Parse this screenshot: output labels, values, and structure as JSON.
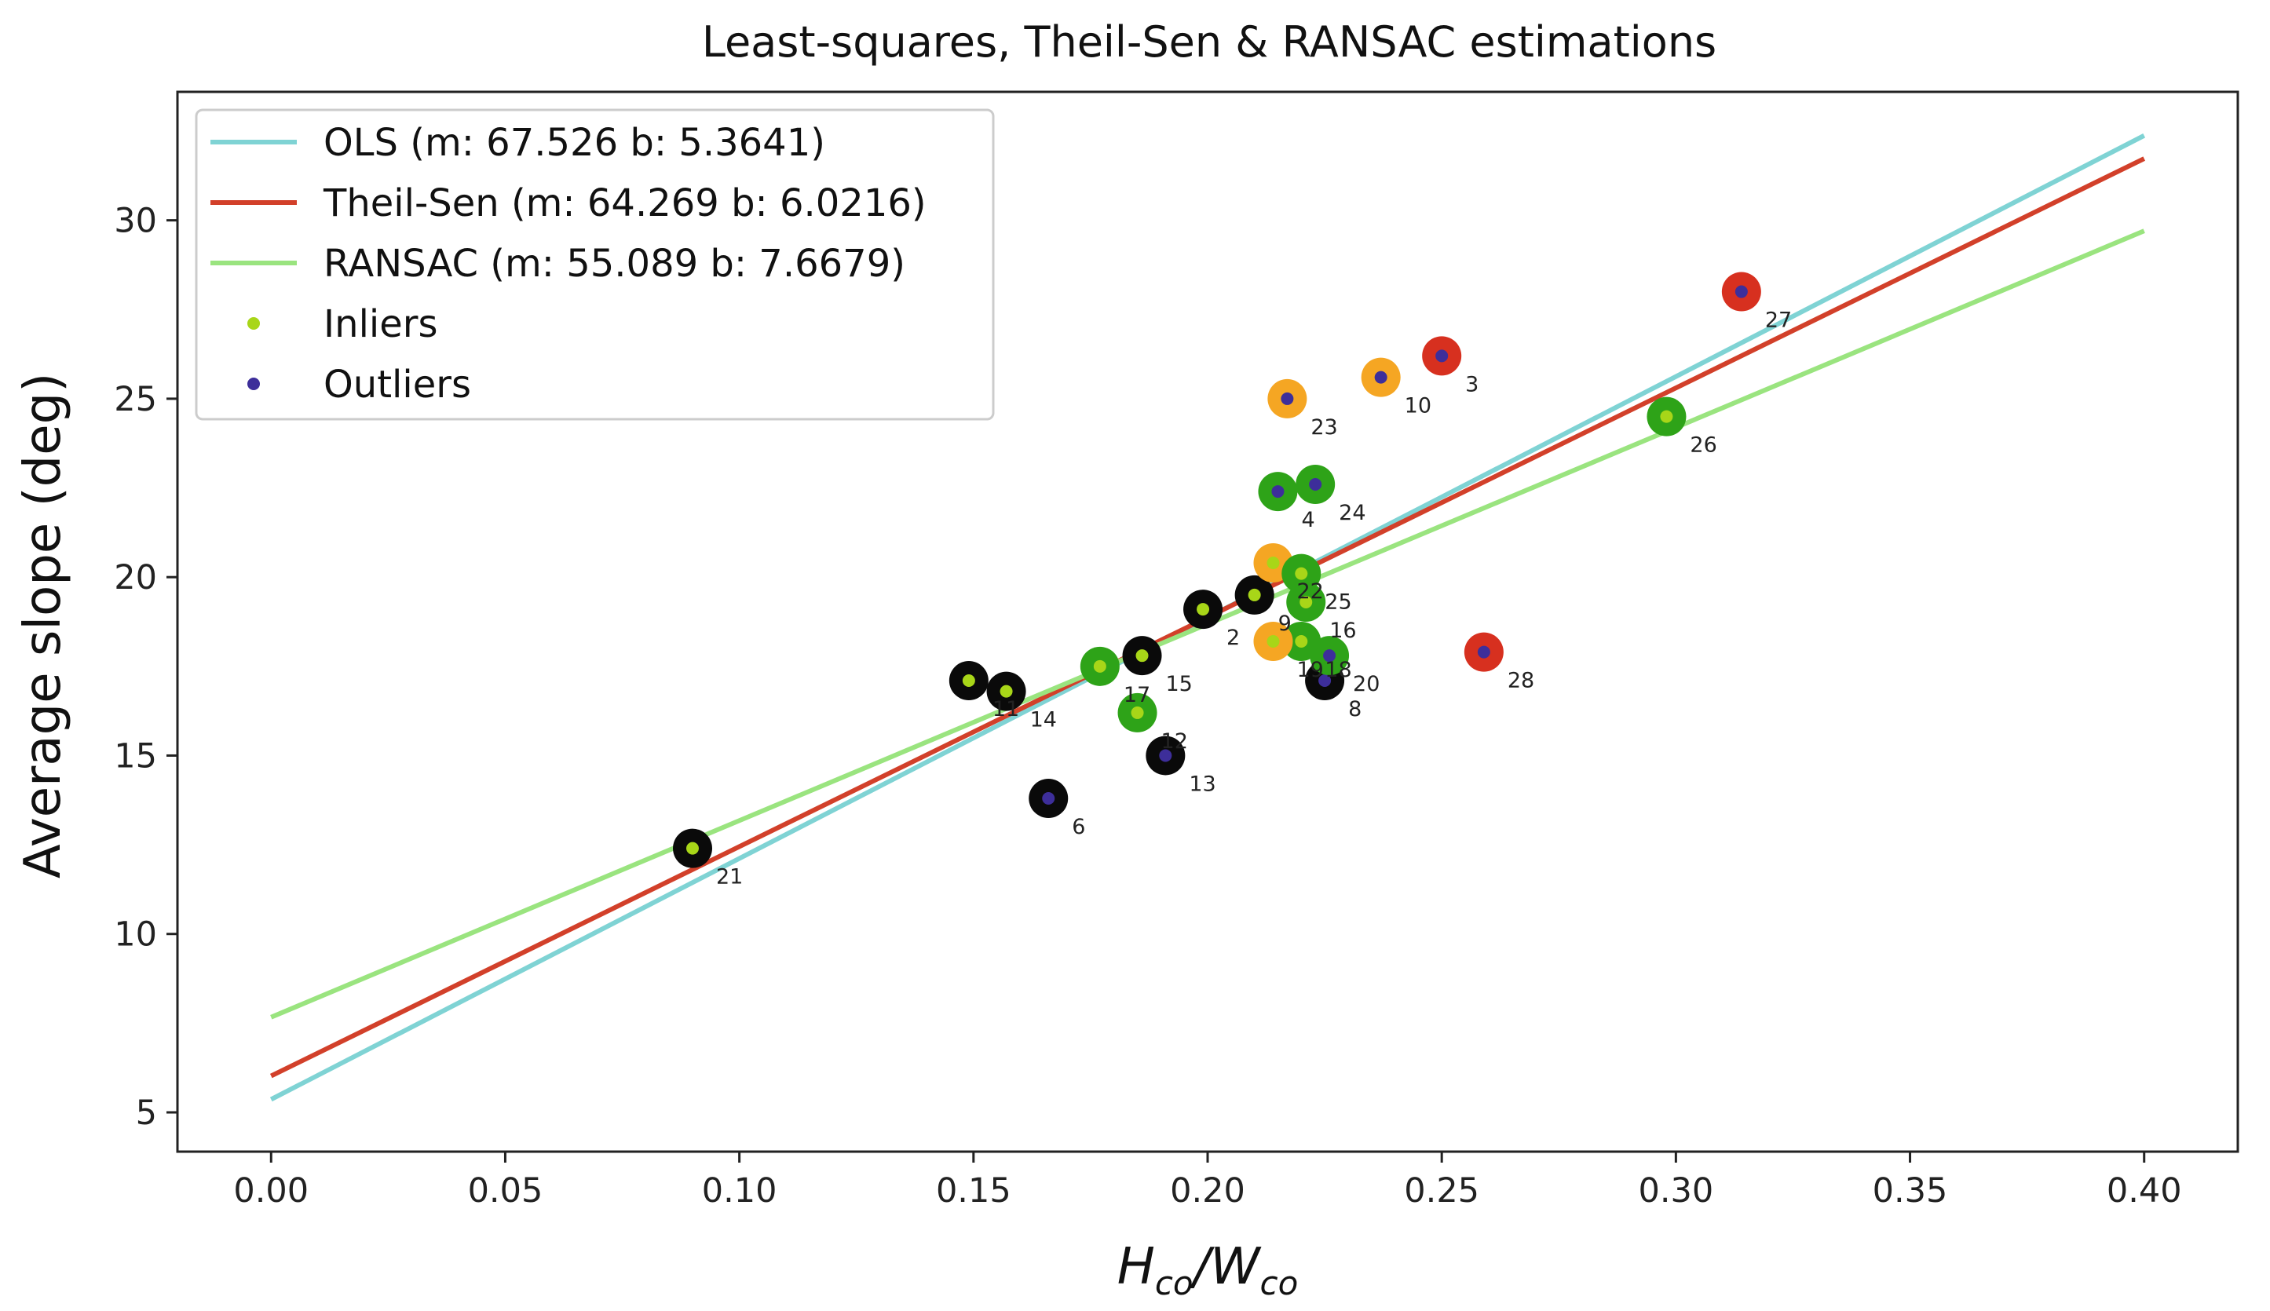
{
  "chart_data": {
    "type": "scatter",
    "title": "Least-squares, Theil-Sen & RANSAC estimations",
    "xlabel": {
      "main": "H",
      "sub1": "co",
      "sep": "/W",
      "sub2": "co"
    },
    "ylabel": "Average slope (deg)",
    "xlim": [
      -0.02,
      0.42
    ],
    "ylim": [
      3.9,
      33.6
    ],
    "xticks": [
      0.0,
      0.05,
      0.1,
      0.15,
      0.2,
      0.25,
      0.3,
      0.35,
      0.4
    ],
    "xtick_labels": [
      "0.00",
      "0.05",
      "0.10",
      "0.15",
      "0.20",
      "0.25",
      "0.30",
      "0.35",
      "0.40"
    ],
    "yticks": [
      5,
      10,
      15,
      20,
      25,
      30
    ],
    "ytick_labels": [
      "5",
      "10",
      "15",
      "20",
      "25",
      "30"
    ],
    "legend_position": "top-left",
    "lines": [
      {
        "name": "OLS",
        "label": "OLS (m: 67.526  b: 5.3641)",
        "m": 67.526,
        "b": 5.3641,
        "x_range": [
          0.0,
          0.4
        ],
        "color": "#7fd3d4"
      },
      {
        "name": "Theil-Sen",
        "label": "Theil-Sen (m: 64.269  b: 6.0216)",
        "m": 64.269,
        "b": 6.0216,
        "x_range": [
          0.0,
          0.4
        ],
        "color": "#d2402a"
      },
      {
        "name": "RANSAC",
        "label": "RANSAC (m: 55.089  b: 7.6679)",
        "m": 55.089,
        "b": 7.6679,
        "x_range": [
          0.0,
          0.4
        ],
        "color": "#9ae47f"
      }
    ],
    "legend_markers": [
      {
        "label": "Inliers",
        "color": "#a8d618"
      },
      {
        "label": "Outliers",
        "color": "#3d2e9a"
      }
    ],
    "category_colors": {
      "black": "#0a0a0a",
      "green": "#2ea318",
      "orange": "#f5a623",
      "red": "#d7301f"
    },
    "points": [
      {
        "id": "2",
        "x": 0.199,
        "y": 19.1,
        "category": "black",
        "inlier": true
      },
      {
        "id": "3",
        "x": 0.25,
        "y": 26.2,
        "category": "red",
        "inlier": false
      },
      {
        "id": "4",
        "x": 0.215,
        "y": 22.4,
        "category": "green",
        "inlier": false
      },
      {
        "id": "6",
        "x": 0.166,
        "y": 13.8,
        "category": "black",
        "inlier": false
      },
      {
        "id": "8",
        "x": 0.225,
        "y": 17.1,
        "category": "black",
        "inlier": false
      },
      {
        "id": "9",
        "x": 0.21,
        "y": 19.5,
        "category": "black",
        "inlier": true
      },
      {
        "id": "10",
        "x": 0.237,
        "y": 25.6,
        "category": "orange",
        "inlier": false
      },
      {
        "id": "11",
        "x": 0.149,
        "y": 17.1,
        "category": "black",
        "inlier": true
      },
      {
        "id": "12",
        "x": 0.185,
        "y": 16.2,
        "category": "green",
        "inlier": true
      },
      {
        "id": "13",
        "x": 0.191,
        "y": 15.0,
        "category": "black",
        "inlier": false
      },
      {
        "id": "14",
        "x": 0.157,
        "y": 16.8,
        "category": "black",
        "inlier": true
      },
      {
        "id": "15",
        "x": 0.186,
        "y": 17.8,
        "category": "black",
        "inlier": true
      },
      {
        "id": "16",
        "x": 0.221,
        "y": 19.3,
        "category": "green",
        "inlier": true
      },
      {
        "id": "17",
        "x": 0.177,
        "y": 17.5,
        "category": "green",
        "inlier": true
      },
      {
        "id": "18",
        "x": 0.22,
        "y": 18.2,
        "category": "green",
        "inlier": true
      },
      {
        "id": "19",
        "x": 0.214,
        "y": 18.2,
        "category": "orange",
        "inlier": true
      },
      {
        "id": "20",
        "x": 0.226,
        "y": 17.8,
        "category": "green",
        "inlier": false
      },
      {
        "id": "21",
        "x": 0.09,
        "y": 12.4,
        "category": "black",
        "inlier": true
      },
      {
        "id": "22",
        "x": 0.214,
        "y": 20.4,
        "category": "orange",
        "inlier": true
      },
      {
        "id": "23",
        "x": 0.217,
        "y": 25.0,
        "category": "orange",
        "inlier": false
      },
      {
        "id": "24",
        "x": 0.223,
        "y": 22.6,
        "category": "green",
        "inlier": false
      },
      {
        "id": "25",
        "x": 0.22,
        "y": 20.1,
        "category": "green",
        "inlier": true
      },
      {
        "id": "26",
        "x": 0.298,
        "y": 24.5,
        "category": "green",
        "inlier": true
      },
      {
        "id": "27",
        "x": 0.314,
        "y": 28.0,
        "category": "red",
        "inlier": false
      },
      {
        "id": "28",
        "x": 0.259,
        "y": 17.9,
        "category": "red",
        "inlier": false
      }
    ]
  }
}
